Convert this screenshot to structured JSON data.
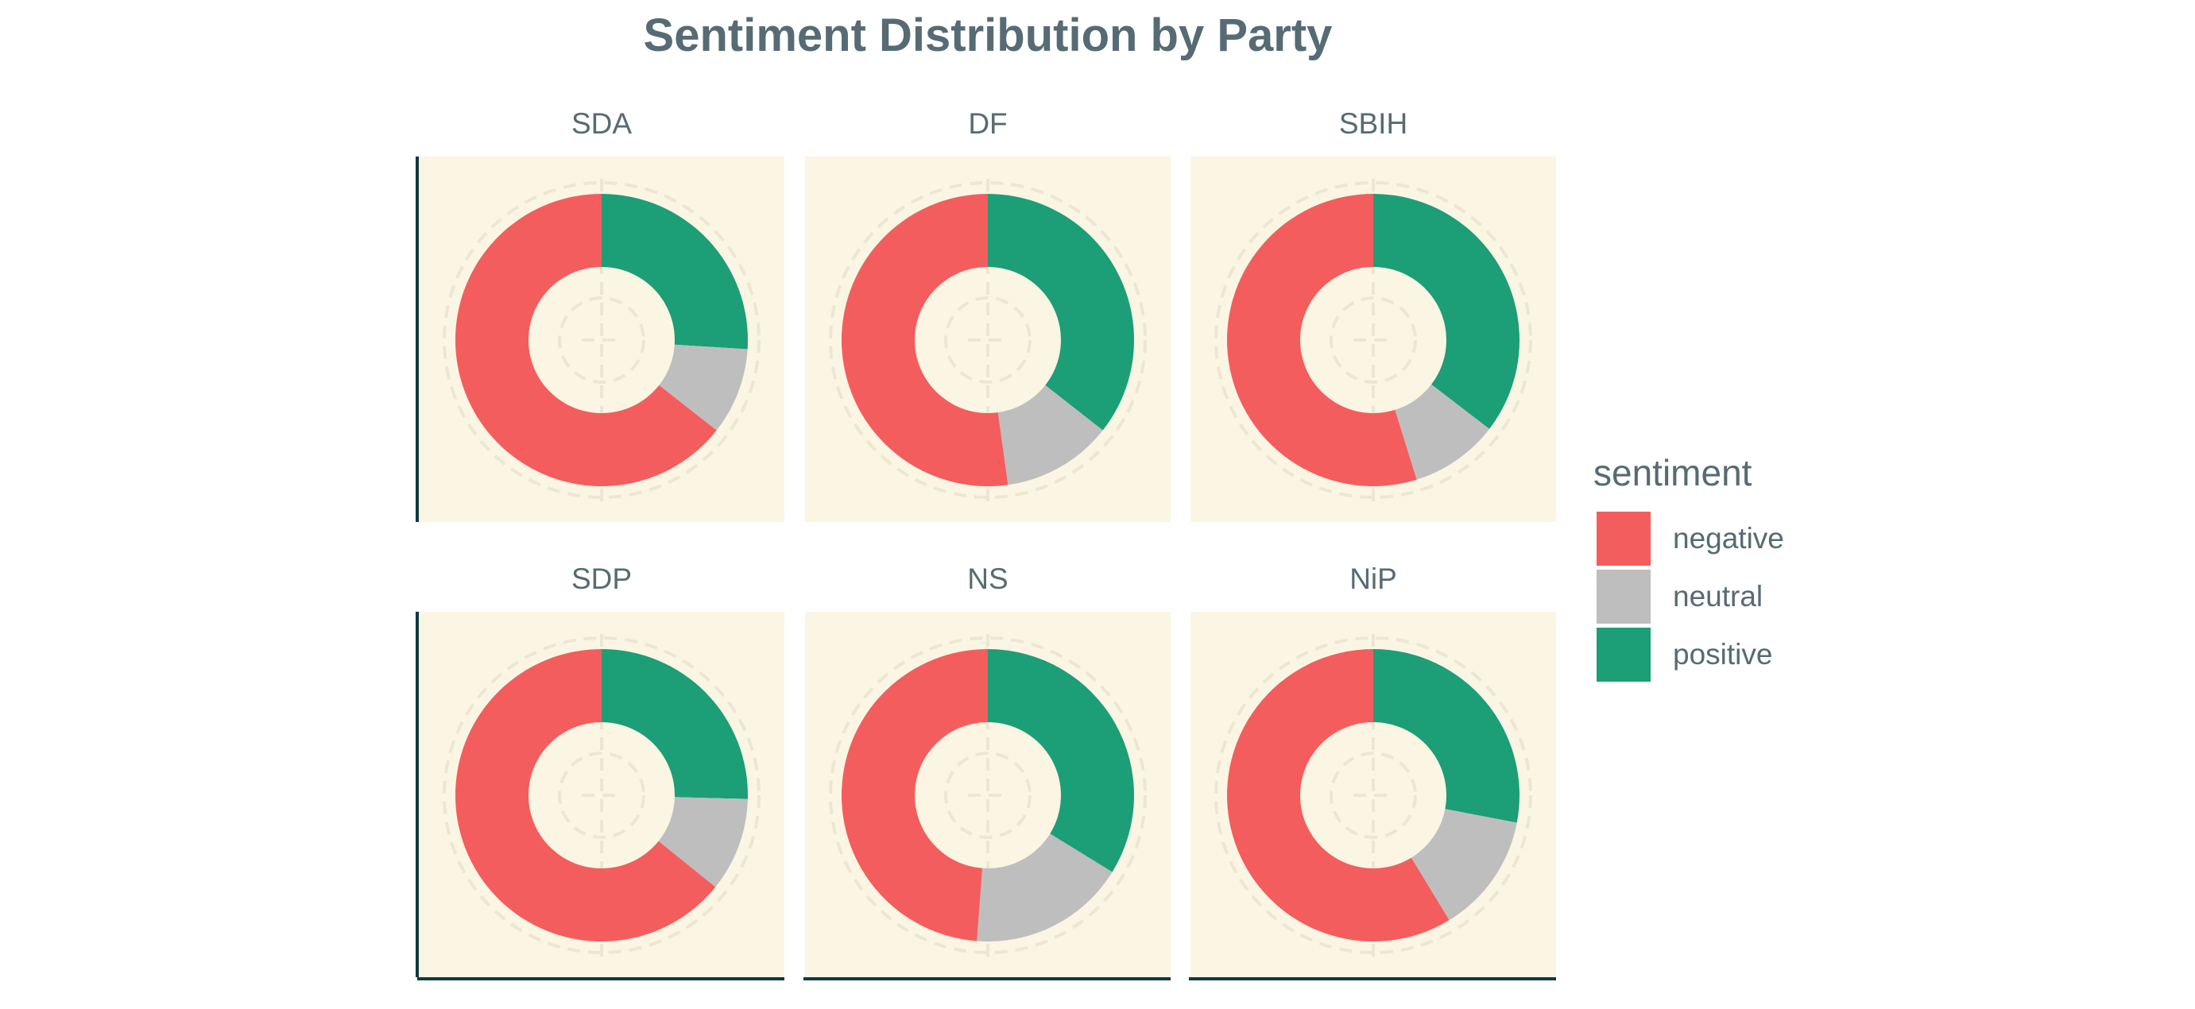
{
  "chart_data": {
    "type": "pie",
    "variant": "donut-facets",
    "title": "Sentiment Distribution by Party",
    "legend": {
      "title": "sentiment",
      "placement": "right",
      "items": [
        {
          "name": "negative",
          "color": "#F45D5D"
        },
        {
          "name": "neutral",
          "color": "#BEBEBE"
        },
        {
          "name": "positive",
          "color": "#1C9E77"
        }
      ]
    },
    "panel_background": "#FBF5E3",
    "grid": true,
    "facets": [
      {
        "label": "SDA",
        "values": {
          "negative": 0.644,
          "neutral": 0.096,
          "positive": 0.26
        }
      },
      {
        "label": "DF",
        "values": {
          "negative": 0.522,
          "neutral": 0.122,
          "positive": 0.356
        }
      },
      {
        "label": "SBIH",
        "values": {
          "negative": 0.548,
          "neutral": 0.098,
          "positive": 0.354
        }
      },
      {
        "label": "SDP",
        "values": {
          "negative": 0.642,
          "neutral": 0.104,
          "positive": 0.254
        }
      },
      {
        "label": "NS",
        "values": {
          "negative": 0.488,
          "neutral": 0.174,
          "positive": 0.338
        }
      },
      {
        "label": "NiP",
        "values": {
          "negative": 0.587,
          "neutral": 0.133,
          "positive": 0.28
        }
      }
    ]
  }
}
